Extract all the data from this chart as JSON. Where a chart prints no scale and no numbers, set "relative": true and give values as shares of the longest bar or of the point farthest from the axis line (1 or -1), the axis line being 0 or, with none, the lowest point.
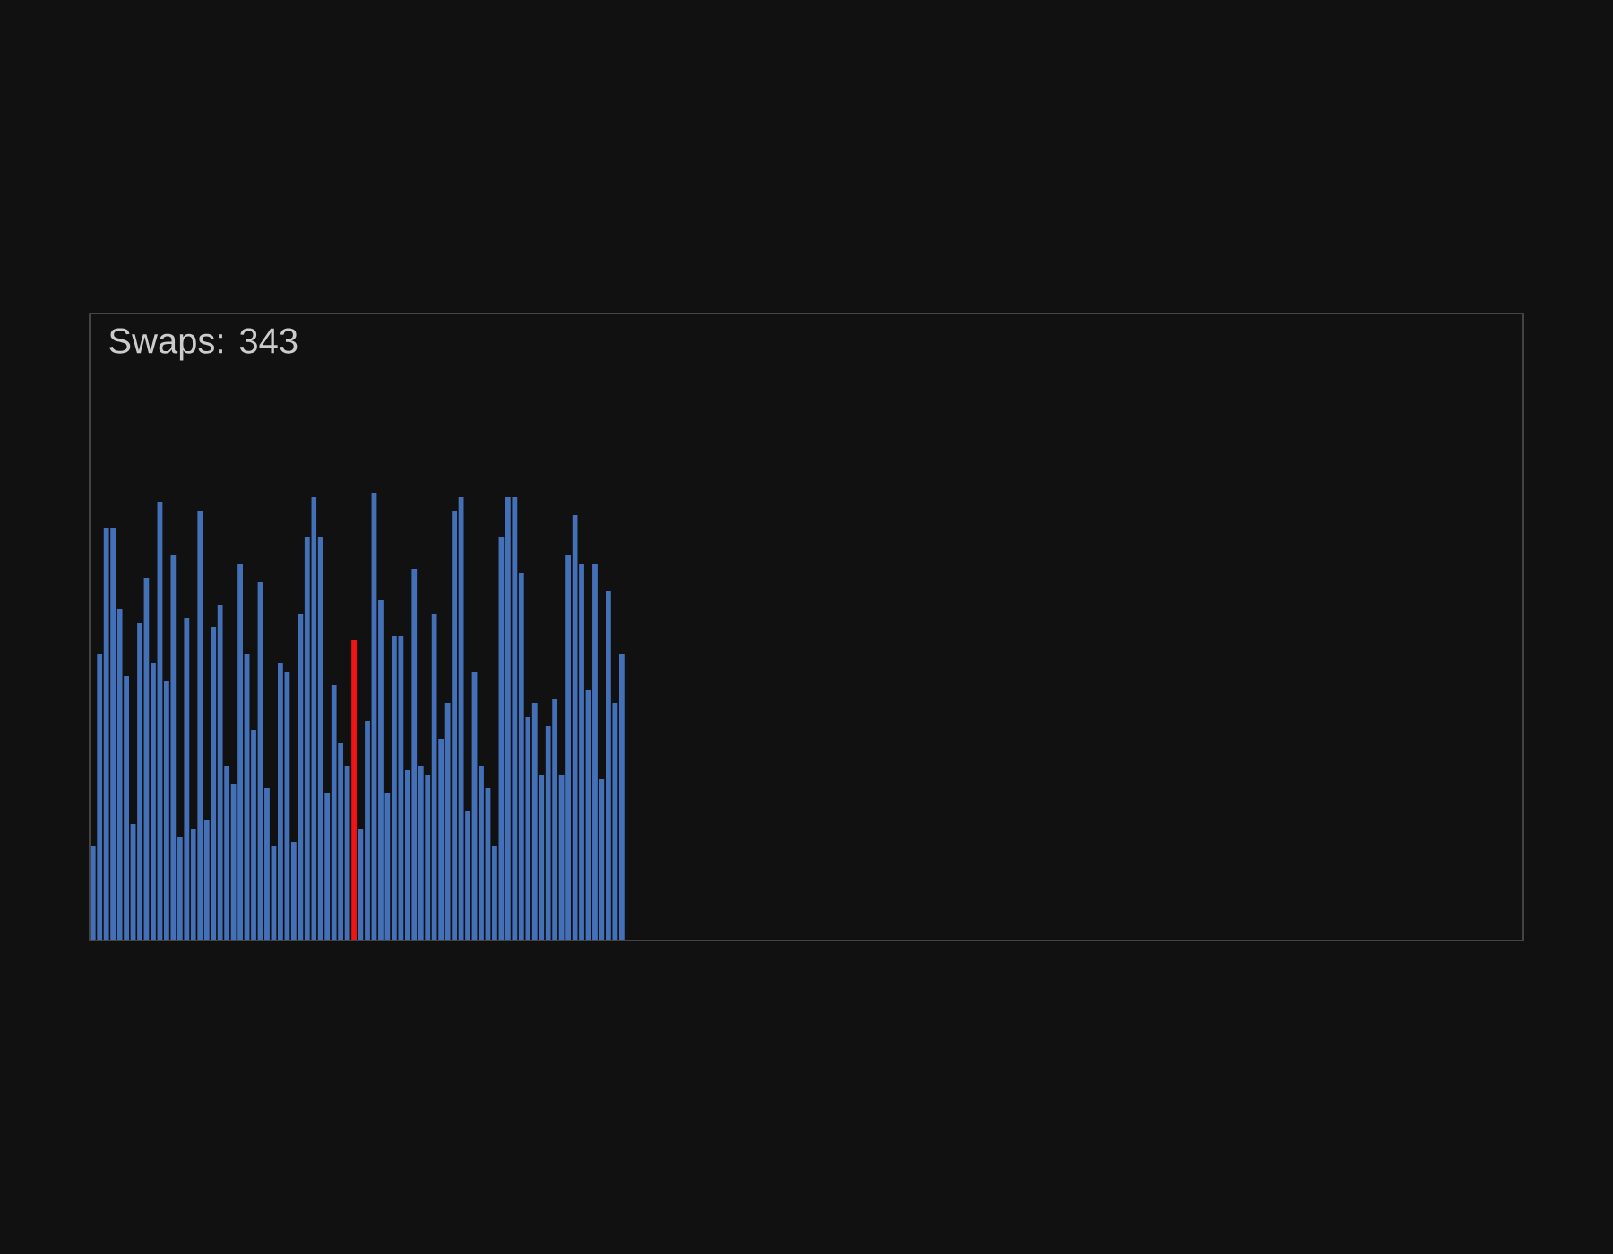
{
  "chart_data": {
    "type": "bar",
    "title": "Swaps: 343",
    "relative": true,
    "categories": [
      null,
      null,
      null,
      null,
      null,
      null,
      null,
      null,
      null,
      null,
      null,
      null,
      null,
      null,
      null,
      null,
      null,
      null,
      null,
      null,
      null,
      null,
      null,
      null,
      null,
      null,
      null,
      null,
      null,
      null,
      null,
      null,
      null,
      null,
      null,
      null,
      null,
      null,
      null,
      null,
      null,
      null,
      null,
      null,
      null,
      null,
      null,
      null,
      null,
      null,
      null,
      null,
      null,
      null,
      null,
      null,
      null,
      null,
      null,
      null,
      null,
      null,
      null,
      null,
      null,
      null,
      null,
      null,
      null,
      null,
      null,
      null,
      null,
      null,
      null,
      null,
      null,
      null,
      null,
      null
    ],
    "values": [
      0.21,
      0.64,
      0.92,
      0.92,
      0.74,
      0.59,
      0.26,
      0.71,
      0.81,
      0.62,
      0.98,
      0.58,
      0.86,
      0.23,
      0.72,
      0.25,
      0.96,
      0.27,
      0.7,
      0.75,
      0.39,
      0.35,
      0.84,
      0.64,
      0.47,
      0.8,
      0.34,
      0.21,
      0.62,
      0.6,
      0.22,
      0.73,
      0.9,
      0.99,
      0.9,
      0.33,
      0.57,
      0.44,
      0.39,
      0.67,
      0.25,
      0.49,
      1,
      0.76,
      0.33,
      0.68,
      0.68,
      0.38,
      0.83,
      0.39,
      0.37,
      0.73,
      0.45,
      0.53,
      0.96,
      0.99,
      0.29,
      0.6,
      0.39,
      0.34,
      0.21,
      0.9,
      0.99,
      0.99,
      0.82,
      0.5,
      0.53,
      0.37,
      0.48,
      0.54,
      0.37,
      0.86,
      0.95,
      0.84,
      0.56,
      0.84,
      0.36,
      0.78,
      0.53,
      0.64
    ],
    "colors": [
      "#4470b8",
      "#4470b8",
      "#4470b8",
      "#4470b8",
      "#4470b8",
      "#4470b8",
      "#4470b8",
      "#4470b8",
      "#4470b8",
      "#4470b8",
      "#4470b8",
      "#4470b8",
      "#4470b8",
      "#4470b8",
      "#4470b8",
      "#4470b8",
      "#4470b8",
      "#4470b8",
      "#4470b8",
      "#4470b8",
      "#4470b8",
      "#4470b8",
      "#4470b8",
      "#4470b8",
      "#4470b8",
      "#4470b8",
      "#4470b8",
      "#4470b8",
      "#4470b8",
      "#4470b8",
      "#4470b8",
      "#4470b8",
      "#4470b8",
      "#4470b8",
      "#4470b8",
      "#4470b8",
      "#4470b8",
      "#4470b8",
      "#4470b8",
      "#f01414",
      "#4470b8",
      "#4470b8",
      "#4470b8",
      "#4470b8",
      "#4470b8",
      "#4470b8",
      "#4470b8",
      "#4470b8",
      "#4470b8",
      "#4470b8",
      "#4470b8",
      "#4470b8",
      "#4470b8",
      "#4470b8",
      "#4470b8",
      "#4470b8",
      "#4470b8",
      "#4470b8",
      "#4470b8",
      "#4470b8",
      "#4470b8",
      "#4470b8",
      "#4470b8",
      "#4470b8",
      "#4470b8",
      "#4470b8",
      "#4470b8",
      "#4470b8",
      "#4470b8",
      "#4470b8",
      "#4470b8",
      "#4470b8",
      "#4470b8",
      "#4470b8",
      "#4470b8",
      "#4470b8",
      "#4470b8",
      "#4470b8",
      "#4470b8",
      "#4470b8"
    ]
  }
}
